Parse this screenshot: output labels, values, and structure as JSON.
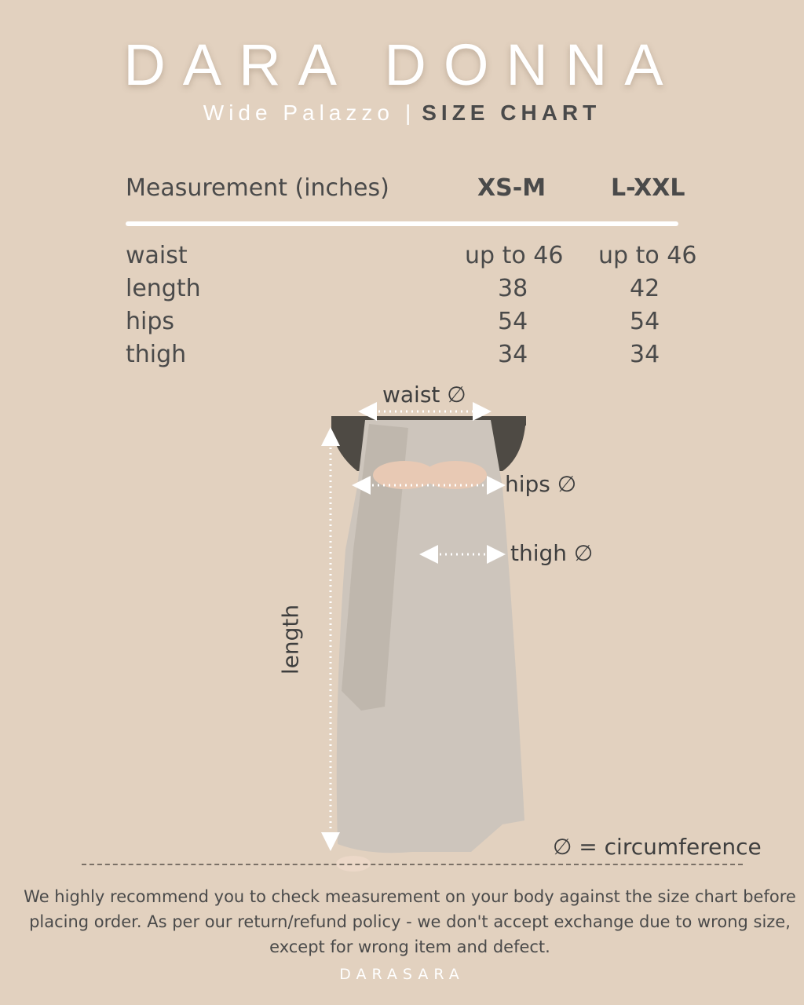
{
  "header": {
    "brand": "DARA DONNA",
    "product": "Wide Palazzo",
    "separator": "|",
    "chart_title": "SIZE CHART"
  },
  "table": {
    "columns": [
      "Measurement (inches)",
      "XS-M",
      "L-XXL"
    ],
    "rows": [
      {
        "label": "waist",
        "xs_m": "up to 46",
        "l_xxl": "up to 46"
      },
      {
        "label": "length",
        "xs_m": "38",
        "l_xxl": "42"
      },
      {
        "label": "hips",
        "xs_m": "54",
        "l_xxl": "54"
      },
      {
        "label": "thigh",
        "xs_m": "34",
        "l_xxl": "34"
      }
    ]
  },
  "diagram": {
    "waist_label": "waist ∅",
    "hips_label": "hips ∅",
    "thigh_label": "thigh ∅",
    "length_label": "length",
    "legend": "∅ = circumference"
  },
  "footer": {
    "note": "We highly recommend you to check measurement on your body against the size chart before placing order. As per our return/refund policy - we don't accept exchange due to wrong size, except for wrong item and defect.",
    "brand": "DARASARA"
  },
  "colors": {
    "background": "#e2d1bf",
    "text": "#4a4a4a",
    "accent": "#ffffff"
  }
}
